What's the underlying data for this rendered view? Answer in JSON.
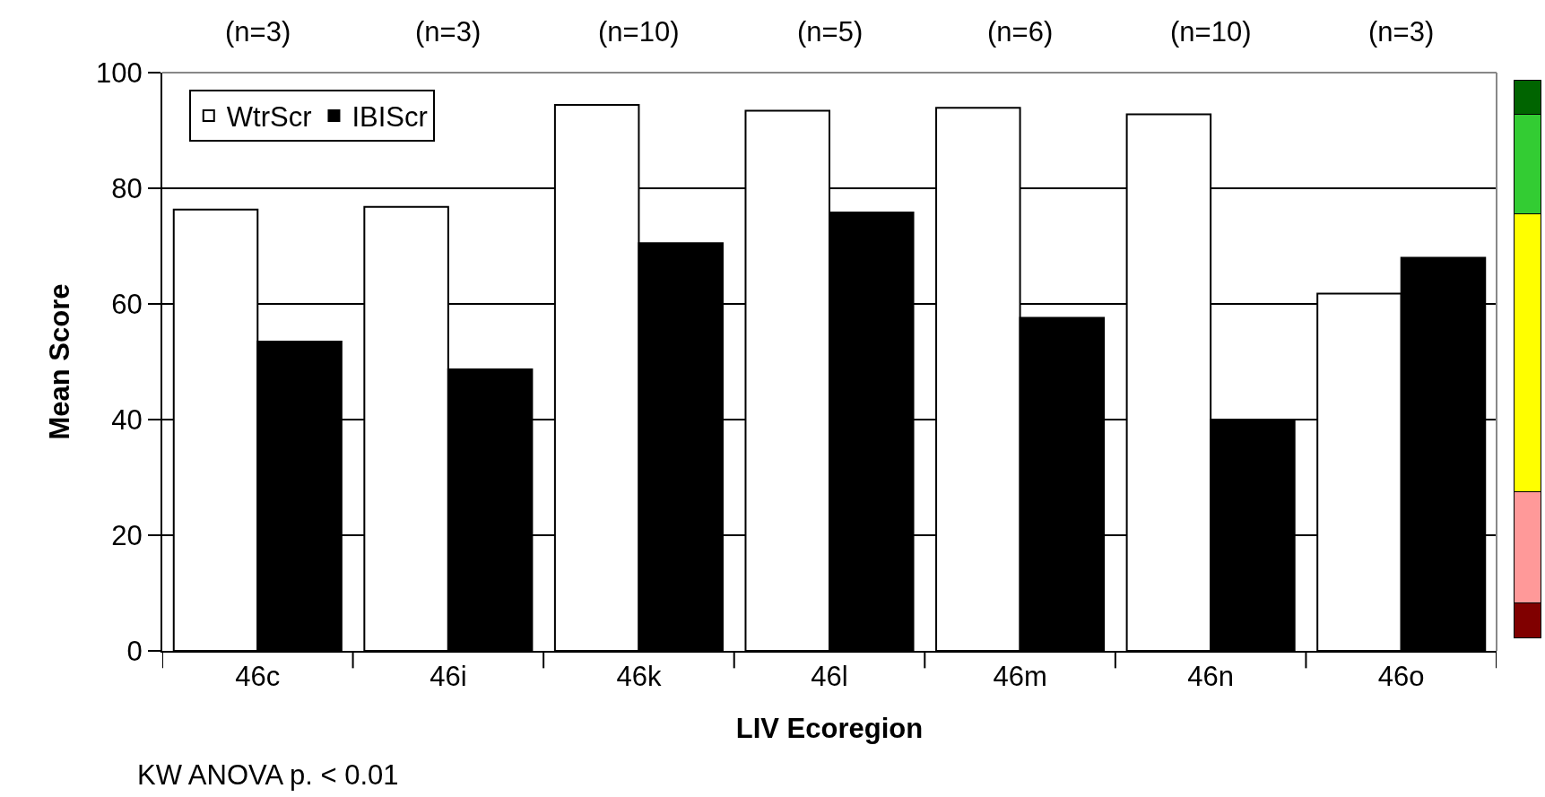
{
  "chart_data": {
    "type": "bar",
    "xlabel": "LIV Ecoregion",
    "ylabel": "Mean Score",
    "categories": [
      "46c",
      "46i",
      "46k",
      "46l",
      "46m",
      "46n",
      "46o"
    ],
    "series": [
      {
        "name": "WtrScr",
        "color": "#ffffff",
        "values": [
          76.3,
          76.8,
          94.4,
          93.4,
          93.9,
          92.8,
          61.8
        ]
      },
      {
        "name": "IBIScr",
        "color": "#000000",
        "values": [
          53.5,
          48.7,
          70.5,
          75.8,
          57.6,
          40.0,
          68.0
        ]
      }
    ],
    "ylim": [
      0,
      100
    ],
    "yticks": [
      0,
      20,
      40,
      60,
      80,
      100
    ],
    "grid": "y",
    "legend": "top left",
    "annotations": [
      "(n=3)",
      "(n=3)",
      "(n=10)",
      "(n=5)",
      "(n=6)",
      "(n=10)",
      "(n=3)",
      "KW ANOVA p. < 0.01"
    ]
  }
}
